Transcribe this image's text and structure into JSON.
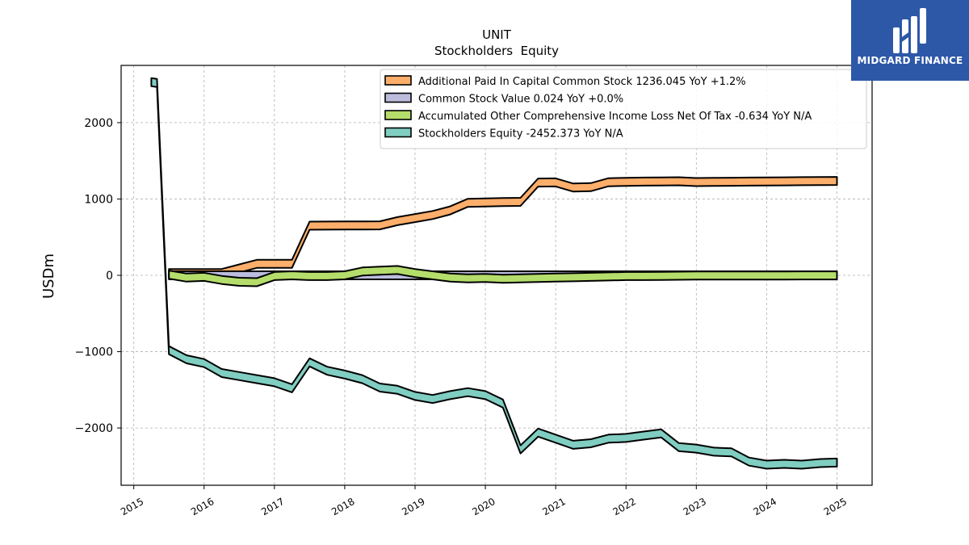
{
  "chart_data": {
    "type": "area",
    "title": "UNIT",
    "subtitle": "Stockholders  Equity",
    "ylabel": "USDm",
    "xlabel": "",
    "xlim": [
      2014.82,
      2025.5
    ],
    "ylim": [
      -2750,
      2750
    ],
    "yticks": [
      -2000,
      -1000,
      0,
      1000,
      2000
    ],
    "ytick_labels": [
      "−2000",
      "−1000",
      "0",
      "1000",
      "2000"
    ],
    "xticks": [
      2015,
      2016,
      2017,
      2018,
      2019,
      2020,
      2021,
      2022,
      2023,
      2024,
      2025
    ],
    "xtick_labels": [
      "2015",
      "2016",
      "2017",
      "2018",
      "2019",
      "2020",
      "2021",
      "2022",
      "2023",
      "2024",
      "2025"
    ],
    "grid": true,
    "legend_position": "top-right",
    "series": [
      {
        "name": "Additional Paid In Capital Common Stock",
        "legend": "Additional Paid In Capital Common Stock  1236.045 YoY +1.2%",
        "color": "#fdae6b",
        "x": [
          2015.5,
          2015.75,
          2016.0,
          2016.25,
          2016.5,
          2016.75,
          2017.0,
          2017.25,
          2017.5,
          2017.75,
          2018.0,
          2018.25,
          2018.5,
          2018.75,
          2019.0,
          2019.25,
          2019.5,
          2019.75,
          2020.0,
          2020.25,
          2020.5,
          2020.75,
          2021.0,
          2021.25,
          2021.5,
          2021.75,
          2022.0,
          2022.25,
          2022.5,
          2022.75,
          2023.0,
          2023.25,
          2023.5,
          2023.75,
          2024.0,
          2024.25,
          2024.5,
          2024.75,
          2025.0
        ],
        "values": [
          30,
          30,
          30,
          30,
          90,
          150,
          150,
          150,
          650,
          652,
          653,
          654,
          655,
          710,
          750,
          790,
          850,
          950,
          955,
          960,
          962,
          1215,
          1217,
          1150,
          1155,
          1220,
          1225,
          1228,
          1230,
          1232,
          1222,
          1224,
          1226,
          1228,
          1229,
          1231,
          1233,
          1235,
          1236
        ]
      },
      {
        "name": "Common Stock Value",
        "legend": "Common Stock Value  0.024 YoY +0.0%",
        "color": "#bcbddc",
        "x": [
          2015.5,
          2015.75,
          2016.0,
          2016.25,
          2016.5,
          2016.75,
          2017.0,
          2017.25,
          2017.5,
          2017.75,
          2018.0,
          2018.25,
          2018.5,
          2018.75,
          2019.0,
          2019.25,
          2019.5,
          2019.75,
          2020.0,
          2020.25,
          2020.5,
          2020.75,
          2021.0,
          2021.25,
          2021.5,
          2021.75,
          2022.0,
          2022.25,
          2022.5,
          2022.75,
          2023.0,
          2023.25,
          2023.5,
          2023.75,
          2024.0,
          2024.25,
          2024.5,
          2024.75,
          2025.0
        ],
        "values": [
          0.02,
          0.02,
          0.02,
          0.02,
          0.02,
          0.02,
          0.02,
          0.02,
          0.02,
          0.02,
          0.02,
          0.02,
          0.02,
          0.02,
          0.02,
          0.02,
          0.02,
          0.02,
          0.02,
          0.02,
          0.02,
          0.02,
          0.02,
          0.02,
          0.02,
          0.02,
          0.02,
          0.02,
          0.02,
          0.02,
          0.02,
          0.02,
          0.02,
          0.02,
          0.024,
          0.024,
          0.024,
          0.024,
          0.024
        ]
      },
      {
        "name": "Accumulated Other Comprehensive Income Loss Net Of Tax",
        "legend": "Accumulated Other Comprehensive Income Loss Net Of Tax  -0.634 YoY N/A",
        "color": "#b5dd6b",
        "x": [
          2015.5,
          2015.75,
          2016.0,
          2016.25,
          2016.5,
          2016.75,
          2017.0,
          2017.25,
          2017.5,
          2017.75,
          2018.0,
          2018.25,
          2018.5,
          2018.75,
          2019.0,
          2019.25,
          2019.5,
          2019.75,
          2020.0,
          2020.25,
          2020.5,
          2020.75,
          2021.0,
          2021.25,
          2021.5,
          2021.75,
          2022.0,
          2022.25,
          2022.5,
          2022.75,
          2023.0,
          2023.25,
          2023.5,
          2023.75,
          2024.0,
          2024.25,
          2024.5,
          2024.75,
          2025.0
        ],
        "values": [
          10,
          -30,
          -20,
          -60,
          -85,
          -90,
          -10,
          0,
          -10,
          -10,
          0,
          50,
          60,
          70,
          30,
          0,
          -30,
          -40,
          -35,
          -45,
          -40,
          -35,
          -30,
          -25,
          -20,
          -15,
          -10,
          -10,
          -8,
          -5,
          -3,
          -3,
          -3,
          -3,
          -2,
          -2,
          -1,
          -1,
          -0.634
        ]
      },
      {
        "name": "Stockholders Equity",
        "legend": "Stockholders Equity  -2452.373 YoY N/A",
        "color": "#80cdc1",
        "x": [
          2015.25,
          2015.33,
          2015.5,
          2015.75,
          2016.0,
          2016.25,
          2016.5,
          2016.75,
          2017.0,
          2017.25,
          2017.5,
          2017.75,
          2018.0,
          2018.25,
          2018.5,
          2018.75,
          2019.0,
          2019.25,
          2019.5,
          2019.75,
          2020.0,
          2020.25,
          2020.5,
          2020.75,
          2021.0,
          2021.25,
          2021.5,
          2021.75,
          2022.0,
          2022.25,
          2022.5,
          2022.75,
          2023.0,
          2023.25,
          2023.5,
          2023.75,
          2024.0,
          2024.25,
          2024.5,
          2024.75,
          2025.0
        ],
        "values": [
          2530,
          2520,
          -980,
          -1100,
          -1150,
          -1280,
          -1320,
          -1360,
          -1400,
          -1480,
          -1140,
          -1250,
          -1300,
          -1360,
          -1470,
          -1500,
          -1580,
          -1620,
          -1570,
          -1530,
          -1570,
          -1680,
          -2280,
          -2060,
          -2140,
          -2220,
          -2200,
          -2140,
          -2130,
          -2100,
          -2070,
          -2250,
          -2270,
          -2310,
          -2320,
          -2440,
          -2480,
          -2470,
          -2480,
          -2460,
          -2452.373
        ]
      }
    ]
  },
  "logo": {
    "text": "MIDGARD FINANCE",
    "background": "#2d58a8"
  }
}
